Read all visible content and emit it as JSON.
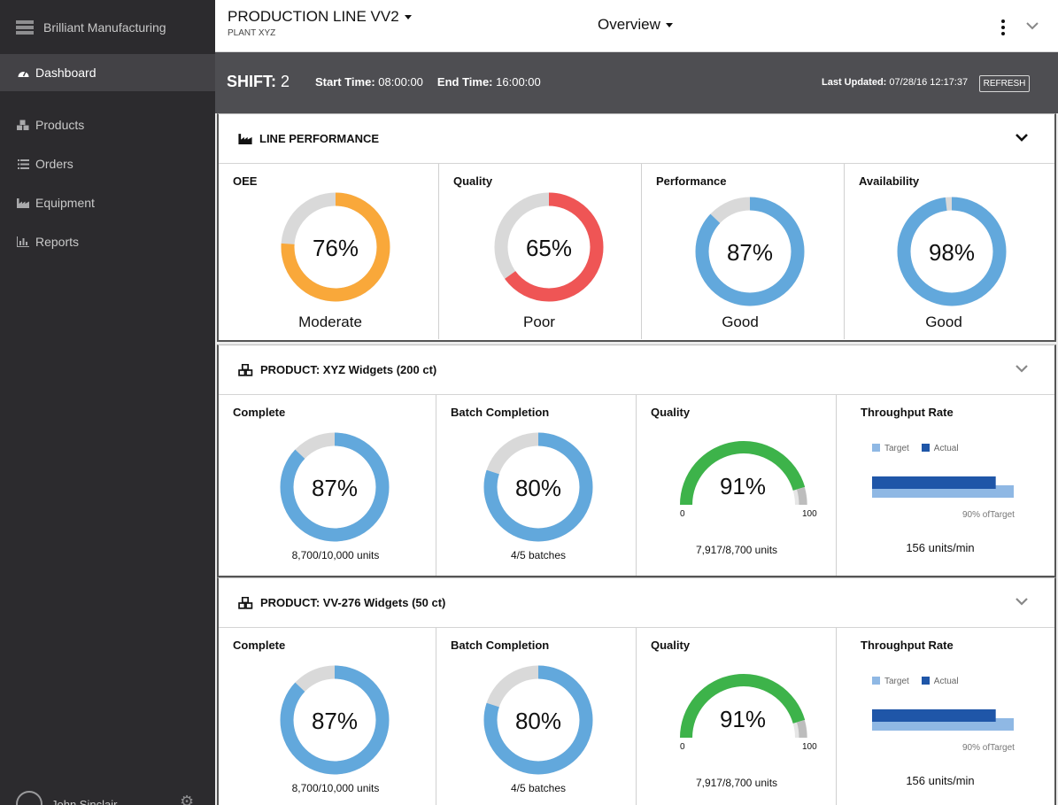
{
  "sidebar": {
    "brand": "Brilliant Manufacturing",
    "items": [
      {
        "label": "Dashboard",
        "icon": "dashboard-icon"
      },
      {
        "label": "Products",
        "icon": "cubes-icon"
      },
      {
        "label": "Orders",
        "icon": "list-icon"
      },
      {
        "label": "Equipment",
        "icon": "factory-icon"
      },
      {
        "label": "Reports",
        "icon": "bar-chart-icon"
      }
    ],
    "user_name": "John Sinclair"
  },
  "header": {
    "line_title": "PRODUCTION LINE VV2",
    "plant": "PLANT XYZ",
    "view": "Overview"
  },
  "shift": {
    "label": "SHIFT:",
    "number": "2",
    "start_label": "Start Time:",
    "start_value": "08:00:00",
    "end_label": "End Time:",
    "end_value": "16:00:00",
    "updated_label": "Last Updated:",
    "updated_value": "07/28/16 12:17:37",
    "refresh_label": "REFRESH"
  },
  "line_performance": {
    "title": "LINE PERFORMANCE",
    "metrics": [
      {
        "title": "OEE",
        "percent": 76,
        "display": "76%",
        "rating": "Moderate",
        "color": "#f9a83a"
      },
      {
        "title": "Quality",
        "percent": 65,
        "display": "65%",
        "rating": "Poor",
        "color": "#ef5555"
      },
      {
        "title": "Performance",
        "percent": 87,
        "display": "87%",
        "rating": "Good",
        "color": "#62a8dc"
      },
      {
        "title": "Availability",
        "percent": 98,
        "display": "98%",
        "rating": "Good",
        "color": "#62a8dc"
      }
    ]
  },
  "products": [
    {
      "title": "PRODUCT: XYZ Widgets (200 ct)",
      "complete": {
        "title": "Complete",
        "percent": 87,
        "display": "87%",
        "sub": "8,700/10,000 units"
      },
      "batch": {
        "title": "Batch Completion",
        "percent": 80,
        "display": "80%",
        "sub": "4/5 batches"
      },
      "quality": {
        "title": "Quality",
        "percent": 91,
        "display": "91%",
        "min": "0",
        "max": "100",
        "sub": "7,917/8,700 units"
      },
      "throughput": {
        "title": "Throughput Rate",
        "legend_target": "Target",
        "legend_actual": "Actual",
        "target": 100,
        "actual": 90,
        "note": "90% ofTarget",
        "rate": "156 units/min"
      }
    },
    {
      "title": "PRODUCT: VV-276 Widgets (50 ct)",
      "complete": {
        "title": "Complete",
        "percent": 87,
        "display": "87%",
        "sub": "8,700/10,000 units"
      },
      "batch": {
        "title": "Batch Completion",
        "percent": 80,
        "display": "80%",
        "sub": "4/5 batches"
      },
      "quality": {
        "title": "Quality",
        "percent": 91,
        "display": "91%",
        "min": "0",
        "max": "100",
        "sub": "7,917/8,700 units"
      },
      "throughput": {
        "title": "Throughput Rate",
        "legend_target": "Target",
        "legend_actual": "Actual",
        "target": 100,
        "actual": 90,
        "note": "90% ofTarget",
        "rate": "156 units/min"
      }
    }
  ],
  "colors": {
    "donut_track": "#d9d9d9",
    "blue": "#62a8dc",
    "gauge_green": "#3db34a",
    "gauge_grey": "#bdbdbd",
    "target_bar": "#8fb8e4",
    "actual_bar": "#1f56a8"
  }
}
